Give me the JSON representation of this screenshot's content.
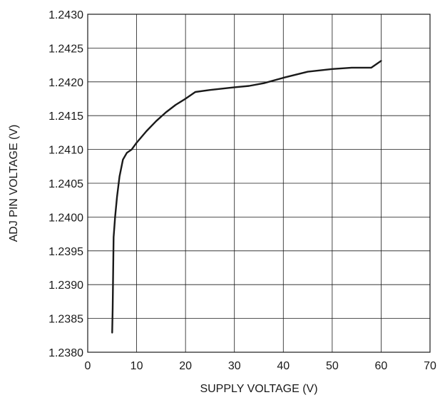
{
  "chart_data": {
    "type": "line",
    "title": "",
    "xlabel": "SUPPLY VOLTAGE (V)",
    "ylabel": "ADJ PIN VOLTAGE (V)",
    "xlim": [
      0,
      70
    ],
    "ylim": [
      1.238,
      1.243
    ],
    "x_ticks": [
      "0",
      "10",
      "20",
      "30",
      "40",
      "50",
      "60",
      "70"
    ],
    "y_ticks": [
      "1.2380",
      "1.2385",
      "1.2390",
      "1.2395",
      "1.2400",
      "1.2405",
      "1.2410",
      "1.2415",
      "1.2420",
      "1.2425",
      "1.2430"
    ],
    "grid": true,
    "series": [
      {
        "color": "#1a1a1a",
        "x": [
          5.0,
          5.1,
          5.3,
          5.6,
          6.0,
          6.5,
          7.2,
          8.0,
          9.0,
          10.0,
          12.0,
          14.0,
          16.0,
          18.0,
          20.0,
          22.0,
          25.0,
          30.0,
          33.0,
          36.0,
          40.0,
          45.0,
          50.0,
          54.0,
          57.0,
          58.0,
          60.0
        ],
        "y": [
          1.23829,
          1.23865,
          1.2397,
          1.24,
          1.2403,
          1.2406,
          1.24085,
          1.24095,
          1.241,
          1.2411,
          1.24127,
          1.24142,
          1.24155,
          1.24166,
          1.24175,
          1.24185,
          1.24188,
          1.24192,
          1.24194,
          1.24198,
          1.24206,
          1.24215,
          1.24219,
          1.24221,
          1.24221,
          1.24221,
          1.24231
        ]
      }
    ]
  }
}
